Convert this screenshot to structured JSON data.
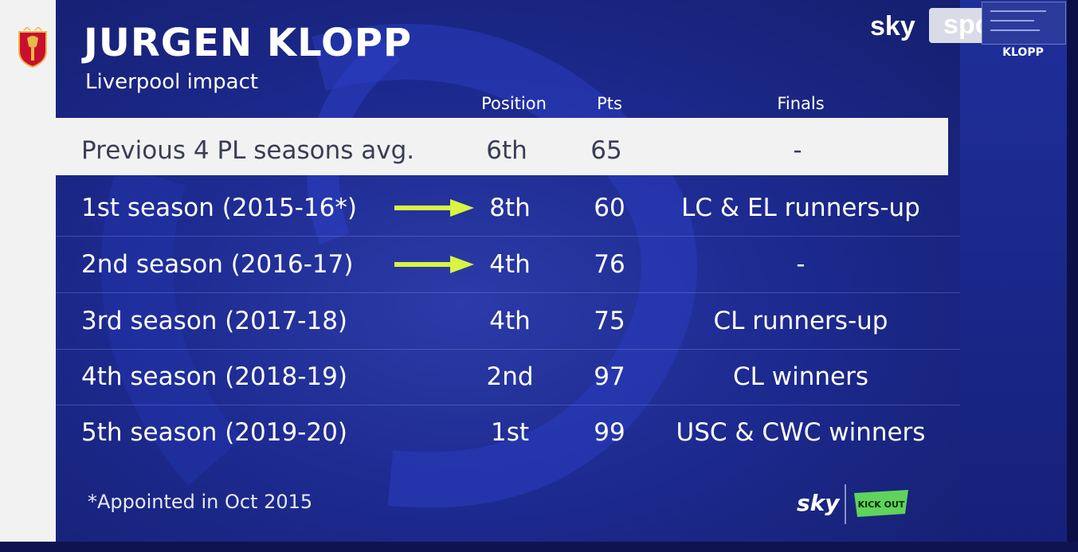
{
  "header": {
    "title": "JURGEN KLOPP",
    "subtitle": "Liverpool impact",
    "columns": [
      "Position",
      "Pts",
      "Finals"
    ]
  },
  "rows": [
    {
      "label": "Previous 4 PL seasons avg.",
      "position": "6th",
      "pts": "65",
      "finals": "-",
      "highlighted": true,
      "arrow": false
    },
    {
      "label": "1st season (2015-16*)",
      "position": "8th",
      "pts": "60",
      "finals": "LC & EL runners-up",
      "highlighted": false,
      "arrow": true
    },
    {
      "label": "2nd season (2016-17)",
      "position": "4th",
      "pts": "76",
      "finals": "-",
      "highlighted": false,
      "arrow": true
    },
    {
      "label": "3rd season (2017-18)",
      "position": "4th",
      "pts": "75",
      "finals": "CL runners-up",
      "highlighted": false,
      "arrow": false
    },
    {
      "label": "4th season (2018-19)",
      "position": "2nd",
      "pts": "97",
      "finals": "CL winners",
      "highlighted": false,
      "arrow": false
    },
    {
      "label": "5th season (2019-20)",
      "position": "1st",
      "pts": "99",
      "finals": "USC & CWC winners",
      "highlighted": false,
      "arrow": false
    }
  ],
  "footnote": "*Appointed in Oct 2015",
  "branding": {
    "top_sky": "sky",
    "top_sports": "sports",
    "bottom_sky": "sky",
    "kickout": "KICK OUT",
    "thumb_label": "KLOPP"
  },
  "colors": {
    "board": "#1d2a90",
    "highlight_row": "#f2f2f2",
    "arrow": "#d8f542",
    "crest": "#c8102e",
    "kickout": "#5fd35a"
  },
  "icons": [
    "liverpool-crest-icon",
    "arrow-right-icon"
  ]
}
